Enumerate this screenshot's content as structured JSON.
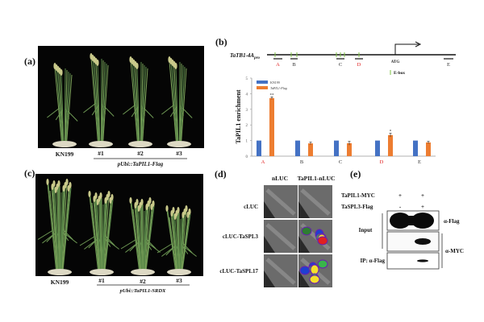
{
  "panels": {
    "a": {
      "label": "(a)",
      "lines": [
        "KN199",
        "#1",
        "#2",
        "#3"
      ],
      "construct": "pUbi::TaPIL1-Flag"
    },
    "b": {
      "label": "(b)",
      "promoter": "TaTB1-4A",
      "promoter_sub": "pro",
      "atg": "ATG",
      "ebox_legend": "E-box",
      "regions": [
        "A",
        "B",
        "C",
        "D",
        "E"
      ]
    },
    "c": {
      "label": "(c)",
      "lines": [
        "KN199",
        "#1",
        "#2",
        "#3"
      ],
      "construct": "pUbi::TaPIL1-SRDX"
    },
    "d": {
      "label": "(d)",
      "col_headers": [
        "nLUC",
        "TaPIL1-nLUC"
      ],
      "row_labels": [
        "cLUC",
        "cLUC-TaSPL3",
        "cLUC-TaSPL17"
      ]
    },
    "e": {
      "label": "(e)",
      "conditions": [
        {
          "name": "TaPIL1-MYC",
          "lanes": [
            "+",
            "+"
          ]
        },
        {
          "name": "TaSPL3-Flag",
          "lanes": [
            "-",
            "+"
          ]
        }
      ],
      "blot_labels": [
        "α-Flag",
        "α-MYC"
      ],
      "row_labels": [
        "Input",
        "IP: α-Flag"
      ]
    }
  },
  "colors": {
    "kn199": "#4472c4",
    "flag": "#ed7d31",
    "highlight": "#e02020",
    "ebox": "#7cc243"
  },
  "chart_data": {
    "type": "bar",
    "title": "",
    "xlabel": "",
    "ylabel": "TaPIL1 enrichment",
    "ylim": [
      0,
      5
    ],
    "yticks": [
      "0",
      "1",
      "2",
      "3",
      "4",
      "5"
    ],
    "categories": [
      "A",
      "B",
      "C",
      "D",
      "E"
    ],
    "highlighted_categories": [
      "A",
      "D"
    ],
    "series": [
      {
        "name": "KN199",
        "values": [
          1,
          1,
          1,
          1,
          1
        ],
        "errors": [
          0,
          0,
          0,
          0,
          0
        ]
      },
      {
        "name": "TaPIL1-Flag",
        "values": [
          3.72,
          0.82,
          0.83,
          1.35,
          0.88
        ],
        "errors": [
          0.08,
          0.08,
          0.12,
          0.12,
          0.07
        ]
      }
    ],
    "annotations": [
      {
        "category": "A",
        "text": "**"
      },
      {
        "category": "D",
        "text": "*"
      }
    ],
    "legend": "top-left"
  }
}
